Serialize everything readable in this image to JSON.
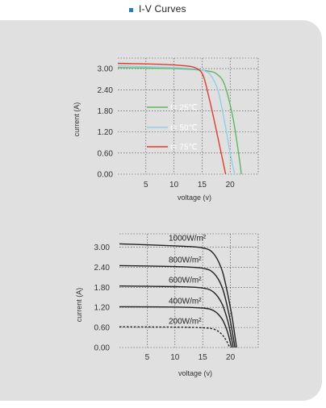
{
  "header": {
    "title": "I-V Curves"
  },
  "colors": {
    "accent": "#1f7fc4",
    "panel": "#e0e0e0"
  },
  "chart_data": [
    {
      "type": "line",
      "xlabel": "voltage (v)",
      "ylabel": "current (A)",
      "xlim": [
        0,
        25
      ],
      "ylim": [
        0,
        3.3
      ],
      "xticks": [
        "5",
        "10",
        "15",
        "20"
      ],
      "yticks": [
        "0.00",
        "0.60",
        "1.20",
        "1.80",
        "2.40",
        "3.00"
      ],
      "grid": true,
      "legend_placement": "center-left",
      "series": [
        {
          "name": "t= 25℃",
          "color": "#5cb85c",
          "x": [
            0,
            10,
            14,
            16,
            17.5,
            19,
            20.5,
            21.5,
            22
          ],
          "y": [
            3.03,
            3.0,
            2.97,
            2.93,
            2.86,
            2.55,
            1.6,
            0.6,
            0.0
          ]
        },
        {
          "name": "t= 50℃",
          "color": "#8fd0ea",
          "x": [
            0,
            10,
            14,
            15.5,
            16.5,
            17.8,
            19,
            20,
            20.8
          ],
          "y": [
            3.08,
            3.03,
            2.99,
            2.93,
            2.82,
            2.4,
            1.5,
            0.6,
            0.0
          ]
        },
        {
          "name": "t= 75℃",
          "color": "#e23b2e",
          "x": [
            0,
            8,
            12,
            14,
            15.2,
            16.2,
            17.2,
            18.4,
            19.2
          ],
          "y": [
            3.15,
            3.12,
            3.08,
            3.01,
            2.8,
            2.2,
            1.5,
            0.6,
            0.0
          ]
        }
      ]
    },
    {
      "type": "line",
      "xlabel": "voltage (v)",
      "ylabel": "current (A)",
      "xlim": [
        0,
        25
      ],
      "ylim": [
        0,
        3.4
      ],
      "xticks": [
        "5",
        "10",
        "15",
        "20"
      ],
      "yticks": [
        "0.00",
        "0.60",
        "1.20",
        "1.80",
        "2.40",
        "3.00"
      ],
      "grid": true,
      "series": [
        {
          "name": "1000W/m²",
          "color": "#222222",
          "dashed": false,
          "x": [
            0,
            10,
            15,
            17,
            18.5,
            19.5,
            20.3,
            20.8,
            21.1
          ],
          "y": [
            3.1,
            3.04,
            2.98,
            2.8,
            2.3,
            1.6,
            0.9,
            0.35,
            0.0
          ]
        },
        {
          "name": "800W/m²",
          "color": "#222222",
          "dashed": false,
          "x": [
            0,
            10,
            15,
            17,
            18.5,
            19.6,
            20.3,
            20.8
          ],
          "y": [
            2.45,
            2.42,
            2.37,
            2.22,
            1.8,
            1.1,
            0.5,
            0.0
          ]
        },
        {
          "name": "600W/m²",
          "color": "#222222",
          "dashed": false,
          "x": [
            0,
            10,
            15,
            17,
            18.5,
            19.5,
            20.1,
            20.5
          ],
          "y": [
            1.84,
            1.82,
            1.78,
            1.65,
            1.3,
            0.8,
            0.35,
            0.0
          ]
        },
        {
          "name": "400W/m²",
          "color": "#222222",
          "dashed": false,
          "x": [
            0,
            10,
            15,
            17,
            18.5,
            19.4,
            19.9,
            20.2
          ],
          "y": [
            1.22,
            1.21,
            1.18,
            1.1,
            0.85,
            0.5,
            0.2,
            0.0
          ]
        },
        {
          "name": "200W/m²",
          "color": "#222222",
          "dashed": true,
          "x": [
            0,
            10,
            15,
            17,
            18.3,
            19.1,
            19.6,
            19.8
          ],
          "y": [
            0.62,
            0.61,
            0.59,
            0.55,
            0.42,
            0.25,
            0.1,
            0.0
          ]
        }
      ]
    }
  ]
}
